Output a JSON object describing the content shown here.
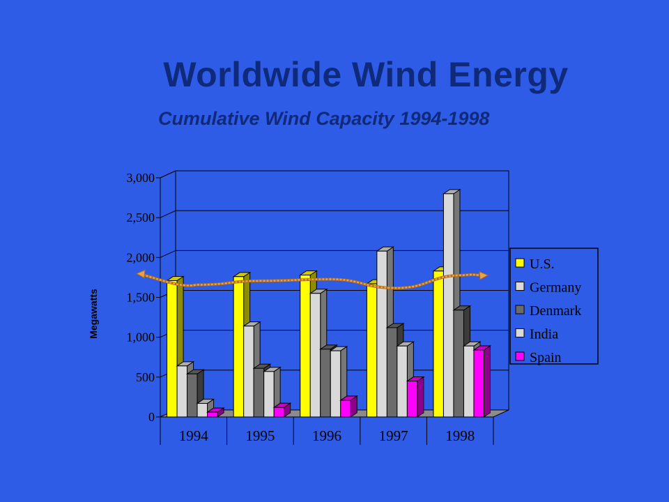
{
  "slide": {
    "title": "Worldwide Wind Energy",
    "subtitle": "Cumulative Wind Capacity 1994-1998"
  },
  "chart_data": {
    "type": "bar",
    "style": "3d-clustered-column",
    "categories": [
      "1994",
      "1995",
      "1996",
      "1997",
      "1998"
    ],
    "series": [
      {
        "name": "U.S.",
        "color": "#ffff00",
        "values": [
          1710,
          1760,
          1780,
          1670,
          1830
        ]
      },
      {
        "name": "Germany",
        "color": "#d9d9d9",
        "values": [
          640,
          1140,
          1550,
          2080,
          2800
        ]
      },
      {
        "name": "Denmark",
        "color": "#6b6b6b",
        "values": [
          540,
          610,
          850,
          1120,
          1340
        ]
      },
      {
        "name": "India",
        "color": "#d9d9d9",
        "values": [
          170,
          570,
          830,
          890,
          890
        ]
      },
      {
        "name": "Spain",
        "color": "#ff00ff",
        "values": [
          60,
          120,
          210,
          450,
          840
        ]
      }
    ],
    "ylabel": "Megawatts",
    "ylim": [
      0,
      3000
    ],
    "yticks": [
      "0",
      "500",
      "1,000",
      "1,500",
      "2,000",
      "2,500",
      "3,000"
    ],
    "grid": true,
    "legend_position": "right",
    "trend_line": {
      "color": "#e9a14a"
    }
  }
}
